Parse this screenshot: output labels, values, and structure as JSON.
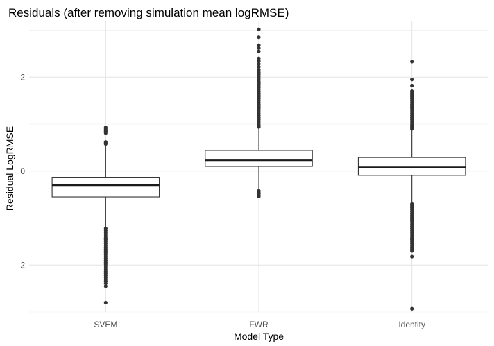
{
  "chart_data": {
    "type": "boxplot",
    "title": "Residuals (after removing simulation mean logRMSE)",
    "xlabel": "Model Type",
    "ylabel": "Residual LogRMSE",
    "categories": [
      "SVEM",
      "FWR",
      "Identity"
    ],
    "ylim": [
      -3.0,
      3.2
    ],
    "yticks": [
      -2,
      0,
      2
    ],
    "ytick_labels": [
      "-2",
      "0",
      "2"
    ],
    "grid": true,
    "legend": "none",
    "boxes": [
      {
        "category": "SVEM",
        "q1": -0.55,
        "median": -0.3,
        "q3": -0.13,
        "whisker_low": -1.2,
        "whisker_high": 0.55,
        "outliers": [
          0.93,
          0.91,
          0.88,
          0.86,
          0.84,
          0.81,
          0.62,
          0.6,
          0.58,
          -1.22,
          -1.26,
          -1.3,
          -1.34,
          -1.38,
          -1.42,
          -1.46,
          -1.5,
          -1.54,
          -1.58,
          -1.62,
          -1.66,
          -1.7,
          -1.74,
          -1.78,
          -1.82,
          -1.86,
          -1.9,
          -1.94,
          -1.98,
          -2.02,
          -2.06,
          -2.1,
          -2.14,
          -2.18,
          -2.22,
          -2.26,
          -2.3,
          -2.34,
          -2.39,
          -2.45,
          -2.8
        ]
      },
      {
        "category": "FWR",
        "q1": 0.1,
        "median": 0.23,
        "q3": 0.44,
        "whisker_low": -0.4,
        "whisker_high": 0.92,
        "outliers": [
          -0.42,
          -0.45,
          -0.48,
          -0.51,
          -0.54,
          0.94,
          0.98,
          1.02,
          1.06,
          1.1,
          1.14,
          1.18,
          1.22,
          1.26,
          1.3,
          1.34,
          1.38,
          1.42,
          1.46,
          1.5,
          1.54,
          1.58,
          1.62,
          1.66,
          1.7,
          1.74,
          1.78,
          1.82,
          1.86,
          1.9,
          1.94,
          1.98,
          2.02,
          2.06,
          2.1,
          2.16,
          2.22,
          2.28,
          2.34,
          2.4,
          2.55,
          2.62,
          2.68,
          2.85,
          3.02
        ]
      },
      {
        "category": "Identity",
        "q1": -0.09,
        "median": 0.08,
        "q3": 0.29,
        "whisker_low": -0.68,
        "whisker_high": 0.88,
        "outliers": [
          0.9,
          0.94,
          0.98,
          1.02,
          1.06,
          1.1,
          1.14,
          1.18,
          1.22,
          1.26,
          1.3,
          1.34,
          1.38,
          1.42,
          1.46,
          1.5,
          1.54,
          1.58,
          1.62,
          1.66,
          1.7,
          1.82,
          1.95,
          2.33,
          -0.7,
          -0.74,
          -0.78,
          -0.82,
          -0.86,
          -0.9,
          -0.94,
          -0.98,
          -1.02,
          -1.06,
          -1.1,
          -1.14,
          -1.18,
          -1.22,
          -1.26,
          -1.3,
          -1.34,
          -1.38,
          -1.42,
          -1.46,
          -1.5,
          -1.54,
          -1.58,
          -1.62,
          -1.66,
          -1.7,
          -1.82,
          -2.93
        ]
      }
    ]
  }
}
